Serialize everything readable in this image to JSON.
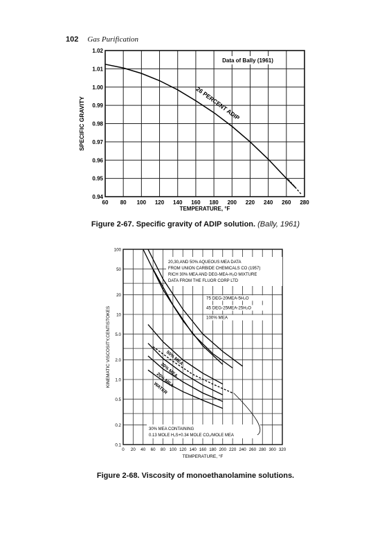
{
  "page": {
    "number": "102",
    "running_title": "Gas Purification"
  },
  "figure1": {
    "caption_main": "Figure 2-67. Specific gravity of ADIP solution. ",
    "caption_cite": "(Bally, 1961)"
  },
  "figure2": {
    "caption_main": "Figure 2-68. Viscosity of monoethanolamine solutions."
  },
  "chart_data": [
    {
      "type": "line",
      "title": "",
      "xlabel": "TEMPERATURE, °F",
      "ylabel": "SPECIFIC GRAVITY",
      "xlim": [
        60,
        280
      ],
      "ylim": [
        0.94,
        1.02
      ],
      "x_ticks": [
        "60",
        "80",
        "100",
        "120",
        "140",
        "160",
        "180",
        "200",
        "220",
        "240",
        "260",
        "280"
      ],
      "y_ticks": [
        "0.94",
        "0.95",
        "0.96",
        "0.97",
        "0.98",
        "0.99",
        "1.00",
        "1.01",
        "1.02"
      ],
      "grid": true,
      "annotation": "Data of Bally (1961)",
      "series": [
        {
          "name": "26 PERCENT ADIP",
          "x": [
            60,
            80,
            100,
            120,
            140,
            160,
            180,
            200,
            220,
            240,
            260,
            270
          ],
          "y": [
            1.0125,
            1.0105,
            1.0075,
            1.0035,
            0.9985,
            0.9925,
            0.986,
            0.9785,
            0.97,
            0.9605,
            0.95,
            0.945
          ]
        }
      ]
    },
    {
      "type": "line",
      "title": "",
      "xlabel": "TEMPERATURE, °F",
      "ylabel": "KINEMATIC VISCOSITY,CENTISTOKES",
      "xlim": [
        0,
        320
      ],
      "ylim": [
        0.1,
        100
      ],
      "y_scale": "log",
      "x_ticks": [
        "0",
        "20",
        "40",
        "60",
        "80",
        "100",
        "120",
        "140",
        "160",
        "180",
        "200",
        "220",
        "240",
        "260",
        "280",
        "300",
        "320"
      ],
      "y_ticks": [
        "100",
        "50",
        "20",
        "10",
        "5.0",
        "2.0",
        "1.0",
        "0.5",
        "0.2",
        "0.1"
      ],
      "grid": true,
      "legend_note": [
        "20,30,AND 50% AQUEOUS MEA DATA",
        "FROM UNION CARBIDE CHEMICALS CO (1957)",
        "RICH 30% MEA AND DEG-MEA-H₂O MIXTURE",
        "DATA FROM THE FLUOR CORP LTD"
      ],
      "labels": [
        "75 DEG-20MEA-5H₂O",
        "45 DEG-25MEA-25H₂O",
        "100% MEA"
      ],
      "curve_labels": [
        "50% MEA",
        "30% MEA",
        "20% MEA",
        "WATER"
      ],
      "bottom_note": [
        "30% MEA CONTAINING",
        "0.13 MOLE H₂S+0.34 MOLE CO₂/MOLE MEA"
      ],
      "series": [
        {
          "name": "75 DEG-20MEA-5H₂O",
          "x": [
            50,
            80,
            120,
            160,
            200,
            240
          ],
          "y": [
            100,
            35,
            12,
            5,
            2.7,
            1.6
          ]
        },
        {
          "name": "45 DEG-25MEA-25H₂O",
          "x": [
            60,
            100,
            140,
            180,
            220
          ],
          "y": [
            50,
            14,
            5,
            2.5,
            1.5
          ]
        },
        {
          "name": "100% MEA",
          "x": [
            40,
            80,
            120,
            160,
            200
          ],
          "y": [
            100,
            24,
            8,
            3.3,
            1.7
          ]
        },
        {
          "name": "50% MEA",
          "x": [
            50,
            80,
            120,
            160,
            200
          ],
          "y": [
            7,
            3.8,
            2.0,
            1.25,
            0.85
          ]
        },
        {
          "name": "30% MEA",
          "x": [
            50,
            80,
            120,
            160,
            200
          ],
          "y": [
            3.6,
            2.1,
            1.25,
            0.82,
            0.58
          ]
        },
        {
          "name": "20% MEA",
          "x": [
            50,
            80,
            120,
            160,
            200
          ],
          "y": [
            2.3,
            1.45,
            0.92,
            0.62,
            0.46
          ]
        },
        {
          "name": "WATER",
          "x": [
            50,
            80,
            120,
            160,
            200
          ],
          "y": [
            1.4,
            0.95,
            0.65,
            0.48,
            0.36
          ]
        },
        {
          "name": "30% MEA CONTAINING",
          "x": [
            60,
            100,
            140,
            180,
            220
          ],
          "y": [
            3.2,
            1.9,
            1.2,
            0.85,
            0.62
          ]
        }
      ]
    }
  ]
}
